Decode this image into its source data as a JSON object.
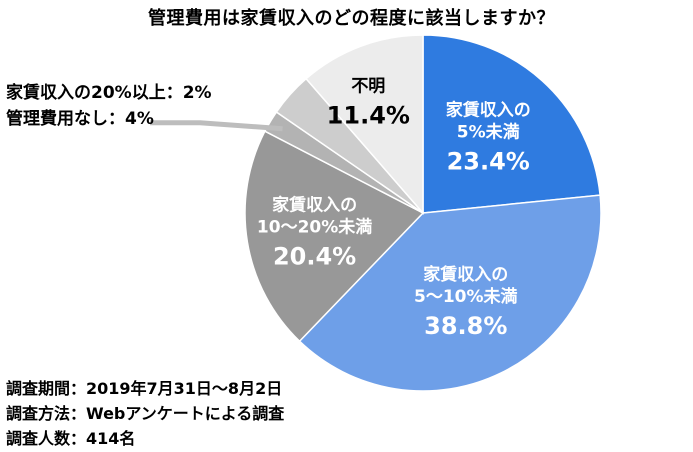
{
  "title": "管理費用は家賃収入のどの程度に該当しますか？",
  "chart_data": {
    "type": "pie",
    "title": "管理費用は家賃収入のどの程度に該当しますか？",
    "slices": [
      {
        "label_lines": [
          "家賃収入の",
          "5%未満"
        ],
        "value": 23.4,
        "display": "23.4%",
        "color": "#2f7be0",
        "text_color": "#ffffff"
      },
      {
        "label_lines": [
          "家賃収入の",
          "5〜10%未満"
        ],
        "value": 38.8,
        "display": "38.8%",
        "color": "#6e9fe8",
        "text_color": "#ffffff"
      },
      {
        "label_lines": [
          "家賃収入の",
          "10〜20%未満"
        ],
        "value": 20.4,
        "display": "20.4%",
        "color": "#989898",
        "text_color": "#ffffff"
      },
      {
        "label_lines": [
          "家賃収入の20%以上"
        ],
        "value": 2,
        "display": "2%",
        "color": "#b3b3b3",
        "text_color": "#000000"
      },
      {
        "label_lines": [
          "管理費用なし"
        ],
        "value": 4,
        "display": "4%",
        "color": "#cdcdcd",
        "text_color": "#000000"
      },
      {
        "label_lines": [
          "不明"
        ],
        "value": 11.4,
        "display": "11.4%",
        "color": "#ececec",
        "text_color": "#000000"
      }
    ]
  },
  "side_labels": {
    "line1": "家賃収入の20%以上：2%",
    "line2": "管理費用なし：4%"
  },
  "footer": {
    "period": "調査期間：2019年7月31日〜8月2日",
    "method": "調査方法：Webアンケートによる調査",
    "count": "調査人数：414名"
  }
}
